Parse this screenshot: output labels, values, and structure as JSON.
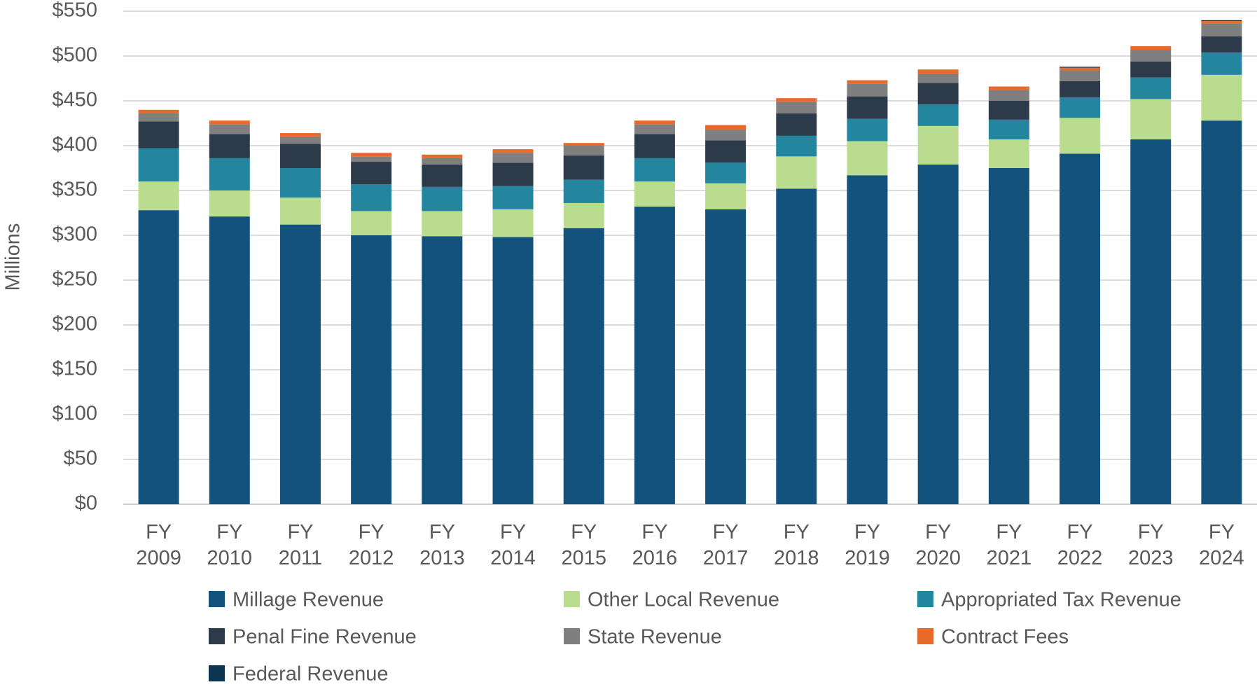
{
  "chart_data": {
    "type": "stacked-bar",
    "y_label": "Millions",
    "categories": [
      "FY 2009",
      "FY 2010",
      "FY 2011",
      "FY 2012",
      "FY 2013",
      "FY 2014",
      "FY 2015",
      "FY 2016",
      "FY 2017",
      "FY 2018",
      "FY 2019",
      "FY 2020",
      "FY 2021",
      "FY 2022",
      "FY 2023",
      "FY 2024"
    ],
    "series": [
      {
        "name": "Millage Revenue",
        "color": "#14527e",
        "values": [
          328,
          321,
          312,
          300,
          299,
          298,
          308,
          332,
          329,
          352,
          367,
          379,
          375,
          391,
          407,
          428
        ]
      },
      {
        "name": "Other Local Revenue",
        "color": "#b9dc8f",
        "values": [
          32,
          29,
          30,
          27,
          28,
          31,
          28,
          28,
          29,
          36,
          38,
          43,
          32,
          40,
          45,
          51
        ]
      },
      {
        "name": "Appropriated Tax Revenue",
        "color": "#23869e",
        "values": [
          37,
          36,
          33,
          30,
          27,
          26,
          26,
          26,
          23,
          23,
          25,
          24,
          22,
          23,
          24,
          25
        ]
      },
      {
        "name": "Penal Fine Revenue",
        "color": "#2d3a4a",
        "values": [
          30,
          27,
          27,
          25,
          25,
          26,
          27,
          27,
          25,
          25,
          25,
          24,
          21,
          18,
          18,
          18
        ]
      },
      {
        "name": "State Revenue",
        "color": "#7f7f7f",
        "values": [
          9,
          11,
          8,
          6,
          7,
          11,
          11,
          11,
          12,
          13,
          14,
          10,
          12,
          12,
          13,
          14
        ]
      },
      {
        "name": "Contract Fees",
        "color": "#e8692c",
        "values": [
          4,
          4,
          4,
          4,
          4,
          4,
          3,
          4,
          5,
          4,
          4,
          5,
          4,
          3,
          4,
          3
        ]
      },
      {
        "name": "Federal Revenue",
        "color": "#0d3552",
        "values": [
          0,
          0,
          0,
          0,
          0,
          0,
          0,
          0,
          0,
          0,
          0,
          0,
          0,
          1,
          0,
          1
        ]
      }
    ],
    "ylim": [
      0,
      550
    ],
    "yticks": [
      {
        "value": 0,
        "label": "$0"
      },
      {
        "value": 50,
        "label": "$50"
      },
      {
        "value": 100,
        "label": "$100"
      },
      {
        "value": 150,
        "label": "$150"
      },
      {
        "value": 200,
        "label": "$200"
      },
      {
        "value": 250,
        "label": "$250"
      },
      {
        "value": 300,
        "label": "$300"
      },
      {
        "value": 350,
        "label": "$350"
      },
      {
        "value": 400,
        "label": "$400"
      },
      {
        "value": 450,
        "label": "$450"
      },
      {
        "value": 500,
        "label": "$500"
      },
      {
        "value": 550,
        "label": "$550"
      }
    ],
    "grid": true
  }
}
